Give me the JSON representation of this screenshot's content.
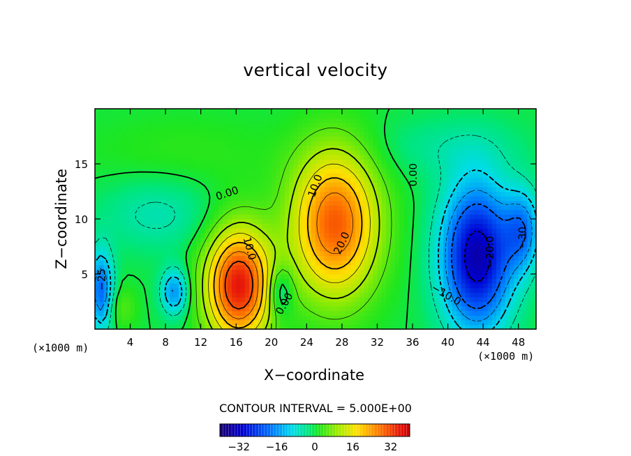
{
  "chart_data": {
    "type": "heatmap",
    "title": "vertical velocity",
    "xlabel": "X−coordinate",
    "ylabel": "Z−coordinate",
    "x_unit_left": "(×1000 m)",
    "x_unit_right": "(×1000 m)",
    "xlim": [
      0,
      50
    ],
    "ylim": [
      0,
      20
    ],
    "xticks": [
      4,
      8,
      12,
      16,
      20,
      24,
      28,
      32,
      36,
      40,
      44,
      48
    ],
    "yticks": [
      5,
      10,
      15
    ],
    "contour_interval_text": "CONTOUR INTERVAL = 5.000E+00",
    "colorbar": {
      "range": [
        -40,
        40
      ],
      "ticks": [
        -32,
        -16,
        0,
        16,
        32
      ],
      "tick_labels": [
        "−32",
        "−16",
        "0",
        "16",
        "32"
      ]
    },
    "contour_labels": [
      {
        "text": "0.00",
        "x": 15.0,
        "y": 12.3,
        "rotation": -18
      },
      {
        "text": "10.0",
        "x": 25.0,
        "y": 13.0,
        "rotation": -70
      },
      {
        "text": "10.0",
        "x": 17.5,
        "y": 7.3,
        "rotation": 75
      },
      {
        "text": "20.0",
        "x": 28.0,
        "y": 7.8,
        "rotation": -65
      },
      {
        "text": "0.00",
        "x": 36.1,
        "y": 14.0,
        "rotation": -90
      },
      {
        "text": "0.00",
        "x": 21.5,
        "y": 2.3,
        "rotation": -60
      },
      {
        "text": "−20.0",
        "x": 44.8,
        "y": 7.0,
        "rotation": -90
      },
      {
        "text": "−10.0",
        "x": 39.8,
        "y": 3.1,
        "rotation": 30
      },
      {
        "text": "−30",
        "x": 48.5,
        "y": 8.3,
        "rotation": -90
      },
      {
        "text": "−25",
        "x": 0.8,
        "y": 4.5,
        "rotation": -90
      }
    ],
    "features": [
      {
        "x": 16.3,
        "y": 4.0,
        "sx": 2.6,
        "sy": 3.6,
        "amp": 36
      },
      {
        "x": 27.2,
        "y": 9.6,
        "sx": 3.4,
        "sy": 4.6,
        "amp": 30
      },
      {
        "x": 43.3,
        "y": 6.6,
        "sx": 2.8,
        "sy": 4.6,
        "amp": -34
      },
      {
        "x": 9.0,
        "y": 3.4,
        "sx": 1.1,
        "sy": 1.5,
        "amp": -16
      },
      {
        "x": 0.7,
        "y": 3.5,
        "sx": 1.0,
        "sy": 2.6,
        "amp": -20
      },
      {
        "x": 21.0,
        "y": 3.5,
        "sx": 1.0,
        "sy": 1.6,
        "amp": -10
      },
      {
        "x": 48.5,
        "y": 9.0,
        "sx": 1.5,
        "sy": 2.6,
        "amp": -16
      },
      {
        "x": 7.0,
        "y": 10.5,
        "sx": 4.5,
        "sy": 2.4,
        "amp": -6
      },
      {
        "x": 3.0,
        "y": 2.0,
        "sx": 1.2,
        "sy": 1.4,
        "amp": 5
      },
      {
        "x": 10.0,
        "y": 16.0,
        "sx": 8.0,
        "sy": 2.5,
        "amp": 2.5
      },
      {
        "x": 40.0,
        "y": 16.5,
        "sx": 6.0,
        "sy": 2.0,
        "amp": -4
      }
    ]
  }
}
